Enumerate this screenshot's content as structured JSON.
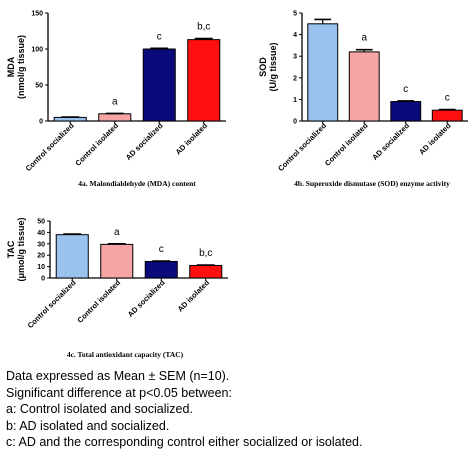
{
  "chart_data": [
    {
      "type": "bar",
      "categories": [
        "Control socialized",
        "Control isolated",
        "AD socialized",
        "AD isolated"
      ],
      "values": [
        5,
        10,
        100,
        113
      ],
      "errors": [
        0.5,
        0.5,
        1,
        1.5
      ],
      "annotations": [
        "",
        "a",
        "c",
        "b,c"
      ],
      "ylabel": [
        "MDA",
        "(nmol/g tissue)"
      ],
      "ylim": [
        0,
        150
      ],
      "yticks": [
        0,
        50,
        100,
        150
      ],
      "caption": "4a. Malondialdehyde (MDA) content"
    },
    {
      "type": "bar",
      "categories": [
        "Control socialized",
        "Control isolated",
        "AD socialized",
        "AD isolated"
      ],
      "values": [
        4.5,
        3.2,
        0.9,
        0.5
      ],
      "errors": [
        0.2,
        0.1,
        0.03,
        0.03
      ],
      "annotations": [
        "",
        "a",
        "c",
        "c"
      ],
      "ylabel": [
        "SOD",
        "(U/g tissue)"
      ],
      "ylim": [
        0,
        5
      ],
      "yticks": [
        0,
        1,
        2,
        3,
        4,
        5
      ],
      "caption": "4b. Superoxide dismutase (SOD) enzyme activity"
    },
    {
      "type": "bar",
      "categories": [
        "Control socialized",
        "Control isolated",
        "AD socialized",
        "AD isolated"
      ],
      "values": [
        38,
        29.5,
        14.5,
        11
      ],
      "errors": [
        0.6,
        0.5,
        0.4,
        0.4
      ],
      "annotations": [
        "",
        "a",
        "c",
        "b,c"
      ],
      "ylabel": [
        "TAC",
        "(μmol/g tissue)"
      ],
      "ylim": [
        0,
        50
      ],
      "yticks": [
        0,
        10,
        20,
        30,
        40,
        50
      ],
      "caption": "4c. Total antioxidant capacity (TAC)"
    }
  ],
  "colors": {
    "bars": [
      "#99c2ee",
      "#f7a4a4",
      "#0a0a7a",
      "#ff0f0f"
    ]
  },
  "footnotes": [
    "Data expressed as Mean ± SEM (n=10).",
    "Significant difference at p<0.05 between:",
    "a: Control isolated and socialized.",
    "b: AD isolated and socialized.",
    "c: AD and the corresponding control either socialized or isolated."
  ]
}
